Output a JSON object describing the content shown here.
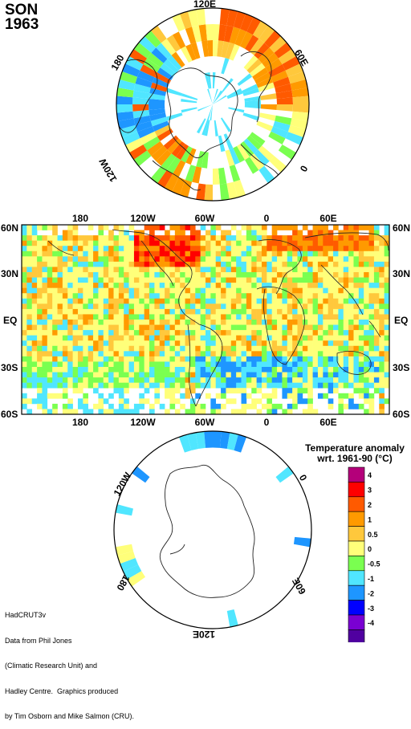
{
  "header": {
    "season": "SON",
    "year": "1963"
  },
  "north_polar": {
    "labels": [
      "120E",
      "180",
      "60E",
      "120W",
      "0"
    ]
  },
  "world_map": {
    "top_lon_labels": [
      "180",
      "120W",
      "60W",
      "0",
      "60E"
    ],
    "bottom_lon_labels": [
      "180",
      "120W",
      "60W",
      "0",
      "60E"
    ],
    "left_lat_labels": [
      "60N",
      "30N",
      "EQ",
      "30S",
      "60S"
    ],
    "right_lat_labels": [
      "60N",
      "30N",
      "EQ",
      "30S",
      "60S"
    ]
  },
  "south_polar": {
    "labels": [
      "120W",
      "0",
      "180",
      "60E",
      "120E"
    ]
  },
  "legend": {
    "title_line1": "Temperature anomaly",
    "title_line2": "wrt. 1961-90  (°C)",
    "items": [
      {
        "label": "4",
        "color": "#b4007a"
      },
      {
        "label": "3",
        "color": "#ff0000"
      },
      {
        "label": "2",
        "color": "#ff5a00"
      },
      {
        "label": "1",
        "color": "#ff9a00"
      },
      {
        "label": "0.5",
        "color": "#ffc83c"
      },
      {
        "label": "0",
        "color": "#ffff7a"
      },
      {
        "label": "-0.5",
        "color": "#7aff50"
      },
      {
        "label": "-1",
        "color": "#50e6ff"
      },
      {
        "label": "-2",
        "color": "#1e96ff"
      },
      {
        "label": "-3",
        "color": "#0000ff"
      },
      {
        "label": "-4",
        "color": "#7a00d2"
      },
      {
        "label": "",
        "color": "#5000a0"
      }
    ]
  },
  "credit": {
    "lines": [
      "HadCRUT3v",
      "Data from Phil Jones",
      "(Climatic Research Unit) and",
      "Hadley Centre.  Graphics produced",
      "by Tim Osborn and Mike Salmon (CRU)."
    ]
  }
}
